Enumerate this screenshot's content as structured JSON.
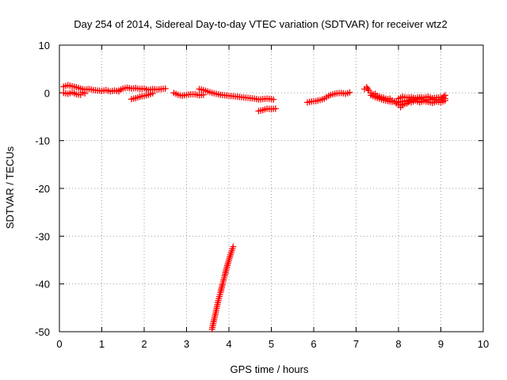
{
  "chart_data": {
    "type": "scatter",
    "title": "Day 254 of 2014, Sidereal Day-to-day VTEC variation (SDTVAR) for receiver wtz2",
    "xlabel": "GPS time / hours",
    "ylabel": "SDTVAR / TECUs",
    "xlim": [
      0,
      10
    ],
    "ylim": [
      -50,
      10
    ],
    "xticks": [
      0,
      1,
      2,
      3,
      4,
      5,
      6,
      7,
      8,
      9,
      10
    ],
    "yticks": [
      10,
      0,
      -10,
      -20,
      -30,
      -40,
      -50
    ],
    "grid": true,
    "marker": "+",
    "color": "#ff0000",
    "series": [
      {
        "name": "SDTVAR",
        "segments": [
          [
            [
              0.1,
              1.3
            ],
            [
              0.2,
              1.6
            ],
            [
              0.3,
              1.4
            ],
            [
              0.4,
              1.2
            ],
            [
              0.5,
              0.9
            ],
            [
              0.6,
              0.7
            ],
            [
              0.7,
              0.8
            ],
            [
              0.8,
              0.6
            ],
            [
              0.9,
              0.5
            ],
            [
              1.0,
              0.4
            ],
            [
              1.1,
              0.6
            ],
            [
              1.2,
              0.3
            ],
            [
              1.3,
              0.5
            ],
            [
              1.4,
              0.3
            ]
          ],
          [
            [
              0.1,
              0.0
            ],
            [
              0.2,
              -0.2
            ],
            [
              0.3,
              0.1
            ],
            [
              0.4,
              -0.3
            ],
            [
              0.5,
              -0.4
            ],
            [
              0.55,
              0.1
            ],
            [
              0.6,
              -0.1
            ]
          ],
          [
            [
              1.4,
              0.5
            ],
            [
              1.5,
              0.9
            ],
            [
              1.6,
              1.1
            ],
            [
              1.7,
              0.9
            ],
            [
              1.8,
              1.0
            ],
            [
              1.9,
              0.8
            ],
            [
              2.0,
              0.9
            ],
            [
              2.1,
              0.6
            ],
            [
              2.2,
              0.8
            ],
            [
              2.3,
              0.7
            ],
            [
              2.4,
              0.8
            ],
            [
              2.5,
              0.9
            ]
          ],
          [
            [
              1.7,
              -1.3
            ],
            [
              1.8,
              -1.1
            ],
            [
              1.9,
              -0.8
            ],
            [
              2.0,
              -0.6
            ],
            [
              2.1,
              -0.4
            ],
            [
              2.2,
              -0.1
            ]
          ],
          [
            [
              2.7,
              0.0
            ],
            [
              2.8,
              -0.4
            ],
            [
              2.9,
              -0.6
            ],
            [
              3.0,
              -0.4
            ],
            [
              3.1,
              -0.3
            ],
            [
              3.2,
              -0.3
            ],
            [
              3.3,
              -0.5
            ],
            [
              3.4,
              -0.4
            ]
          ],
          [
            [
              3.3,
              0.8
            ],
            [
              3.4,
              0.6
            ],
            [
              3.5,
              0.3
            ],
            [
              3.6,
              0.0
            ],
            [
              3.7,
              -0.2
            ],
            [
              3.8,
              -0.4
            ],
            [
              3.9,
              -0.5
            ],
            [
              4.0,
              -0.6
            ],
            [
              4.1,
              -0.7
            ],
            [
              4.2,
              -0.8
            ],
            [
              4.3,
              -0.9
            ],
            [
              4.4,
              -1.0
            ],
            [
              4.5,
              -1.1
            ],
            [
              4.6,
              -1.2
            ],
            [
              4.7,
              -1.4
            ],
            [
              4.8,
              -1.3
            ],
            [
              4.9,
              -1.2
            ],
            [
              5.0,
              -1.3
            ],
            [
              5.05,
              -1.4
            ]
          ],
          [
            [
              4.7,
              -3.8
            ],
            [
              4.8,
              -3.6
            ],
            [
              4.9,
              -3.3
            ],
            [
              5.0,
              -3.4
            ],
            [
              5.1,
              -3.3
            ]
          ],
          [
            [
              3.6,
              -49.5
            ],
            [
              3.65,
              -47.5
            ],
            [
              3.7,
              -45.5
            ],
            [
              3.75,
              -43.5
            ],
            [
              3.8,
              -41.8
            ],
            [
              3.85,
              -40.0
            ],
            [
              3.9,
              -38.3
            ],
            [
              3.95,
              -36.5
            ],
            [
              4.0,
              -35.0
            ],
            [
              4.05,
              -33.5
            ],
            [
              4.1,
              -32.2
            ]
          ],
          [
            [
              5.85,
              -2.0
            ],
            [
              5.95,
              -1.8
            ],
            [
              6.05,
              -1.7
            ],
            [
              6.15,
              -1.5
            ],
            [
              6.25,
              -1.2
            ],
            [
              6.35,
              -0.6
            ],
            [
              6.45,
              -0.3
            ],
            [
              6.55,
              -0.1
            ],
            [
              6.65,
              0.0
            ],
            [
              6.75,
              -0.2
            ],
            [
              6.85,
              0.1
            ]
          ],
          [
            [
              7.2,
              0.8
            ],
            [
              7.25,
              1.2
            ],
            [
              7.3,
              0.5
            ],
            [
              7.35,
              0.0
            ],
            [
              7.4,
              -0.3
            ],
            [
              7.45,
              -0.2
            ],
            [
              7.5,
              -0.6
            ],
            [
              7.55,
              -0.8
            ],
            [
              7.6,
              -0.9
            ],
            [
              7.65,
              -1.0
            ],
            [
              7.7,
              -1.2
            ],
            [
              7.75,
              -1.3
            ],
            [
              7.8,
              -1.2
            ],
            [
              7.85,
              -1.6
            ],
            [
              7.9,
              -1.8
            ],
            [
              7.95,
              -2.2
            ],
            [
              8.0,
              -2.5
            ],
            [
              8.05,
              -3.0
            ],
            [
              8.1,
              -2.6
            ]
          ],
          [
            [
              7.35,
              -0.5
            ],
            [
              7.45,
              -0.9
            ],
            [
              7.55,
              -1.2
            ],
            [
              7.65,
              -1.5
            ],
            [
              7.75,
              -1.7
            ],
            [
              7.85,
              -1.9
            ],
            [
              7.95,
              -1.8
            ],
            [
              8.05,
              -1.8
            ]
          ],
          [
            [
              8.0,
              -1.2
            ],
            [
              8.1,
              -0.8
            ],
            [
              8.2,
              -1.0
            ],
            [
              8.3,
              -0.9
            ],
            [
              8.4,
              -1.1
            ],
            [
              8.5,
              -0.9
            ],
            [
              8.6,
              -1.0
            ],
            [
              8.7,
              -0.8
            ],
            [
              8.8,
              -1.1
            ],
            [
              8.9,
              -1.0
            ],
            [
              9.0,
              -0.9
            ],
            [
              9.1,
              -1.2
            ]
          ],
          [
            [
              8.0,
              -2.0
            ],
            [
              8.1,
              -1.8
            ],
            [
              8.2,
              -1.6
            ],
            [
              8.3,
              -2.0
            ],
            [
              8.4,
              -1.6
            ],
            [
              8.5,
              -2.0
            ],
            [
              8.6,
              -1.7
            ],
            [
              8.7,
              -1.9
            ],
            [
              8.8,
              -2.1
            ],
            [
              8.9,
              -1.8
            ],
            [
              9.0,
              -2.0
            ],
            [
              9.1,
              -1.6
            ]
          ],
          [
            [
              8.1,
              -2.4
            ],
            [
              8.2,
              -2.2
            ],
            [
              8.3,
              -1.3
            ],
            [
              8.4,
              -1.4
            ],
            [
              8.5,
              -1.2
            ],
            [
              8.6,
              -1.4
            ],
            [
              8.7,
              -1.5
            ],
            [
              8.8,
              -1.3
            ],
            [
              8.9,
              -1.5
            ],
            [
              9.0,
              -1.4
            ],
            [
              9.1,
              -0.5
            ]
          ]
        ]
      }
    ]
  }
}
